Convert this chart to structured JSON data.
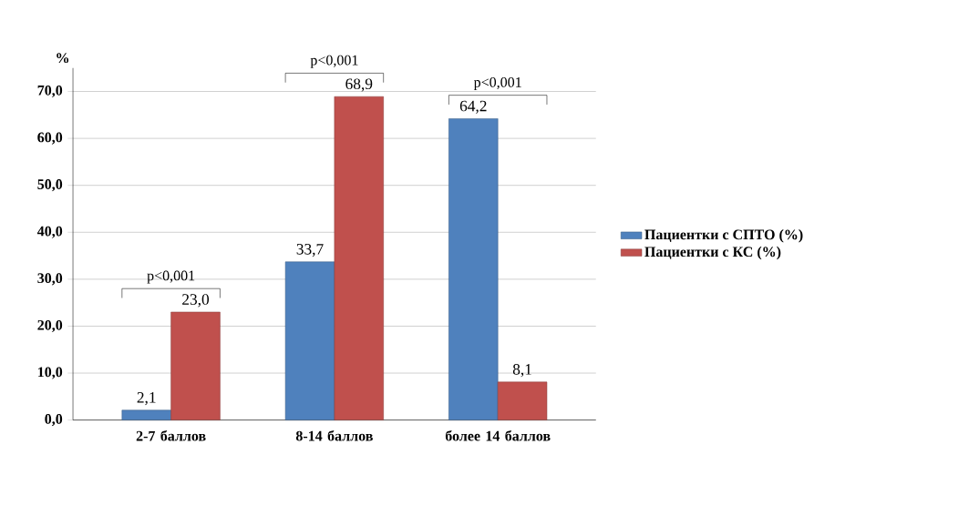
{
  "chart_data": {
    "type": "bar",
    "ylabel": "%",
    "categories": [
      "2-7 баллов",
      "8-14 баллов",
      "более 14 баллов"
    ],
    "series": [
      {
        "name": "Пациентки с СПТО (%)",
        "color": "#4f81bd",
        "values": [
          2.1,
          33.7,
          64.2
        ],
        "value_labels": [
          "2,1",
          "33,7",
          "64,2"
        ]
      },
      {
        "name": "Пациентки с КС (%)",
        "color": "#c0504d",
        "values": [
          23.0,
          68.9,
          8.1
        ],
        "value_labels": [
          "23,0",
          "68,9",
          "8,1"
        ]
      }
    ],
    "ylim": [
      0,
      75
    ],
    "yticks": [
      {
        "value": 0,
        "label": "0,0"
      },
      {
        "value": 10,
        "label": "10,0"
      },
      {
        "value": 20,
        "label": "20,0"
      },
      {
        "value": 30,
        "label": "30,0"
      },
      {
        "value": 40,
        "label": "40,0"
      },
      {
        "value": 50,
        "label": "50,0"
      },
      {
        "value": 60,
        "label": "60,0"
      },
      {
        "value": 70,
        "label": "70,0"
      }
    ],
    "grid": "y",
    "legend": "right",
    "annotations": [
      "p<0,001",
      "p<0,001",
      "p<0,001"
    ]
  }
}
